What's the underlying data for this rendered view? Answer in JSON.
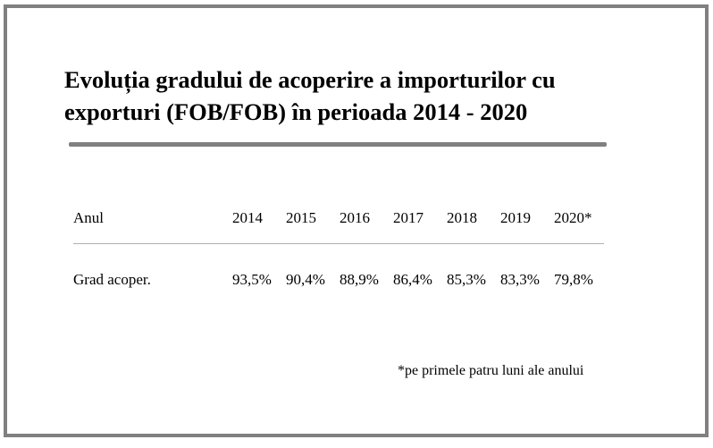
{
  "title": "Evoluția gradului de acoperire a importurilor cu exporturi (FOB/FOB) în perioada 2014 - 2020",
  "table": {
    "header_label": "Anul",
    "years": [
      "2014",
      "2015",
      "2016",
      "2017",
      "2018",
      "2019",
      "2020*"
    ],
    "row_label": "Grad acoper.",
    "values": [
      "93,5%",
      "90,4%",
      "88,9%",
      "86,4%",
      "85,3%",
      "83,3%",
      "79,8%"
    ]
  },
  "footnote": "*pe primele patru luni ale anului",
  "colors": {
    "frame": "#808080",
    "title_rule": "#808080",
    "text": "#000000"
  }
}
